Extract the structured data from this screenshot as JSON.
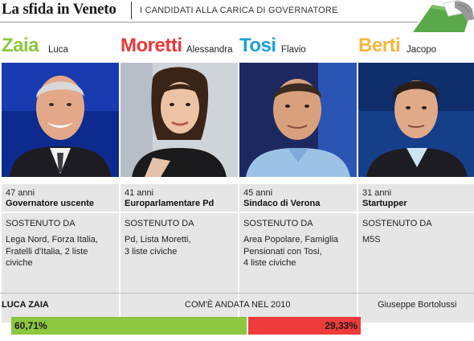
{
  "header": {
    "title": "La sfida in Veneto",
    "subtitle": "I CANDIDATI ALLA CARICA DI GOVERNATORE"
  },
  "candidates": [
    {
      "surname": "Zaia",
      "firstname": "Luca",
      "color": "#8dc63f",
      "age": "47 anni",
      "role": "Governatore uscente",
      "supported_label": "SOSTENUTO DA",
      "supporters": [
        "Lega Nord, Forza Italia,",
        "Fratelli d'Italia, 2 liste",
        "civiche"
      ]
    },
    {
      "surname": "Moretti",
      "firstname": "Alessandra",
      "color": "#e8393a",
      "age": "41 anni",
      "role": "Europarlamentare Pd",
      "supported_label": "SOSTENUTO DA",
      "supporters": [
        "Pd, Lista Moretti,",
        "3 liste civiche"
      ]
    },
    {
      "surname": "Tosi",
      "firstname": "Flavio",
      "color": "#1d9fd8",
      "age": "45 anni",
      "role": "Sindaco di Verona",
      "supported_label": "SOSTENUTO DA",
      "supporters": [
        "Area Popolare, Famiglia",
        "Pensionati con Tosi,",
        "4 liste civiche"
      ]
    },
    {
      "surname": "Berti",
      "firstname": "Jacopo",
      "color": "#f4b73e",
      "age": "31 anni",
      "role": "Startupper",
      "supported_label": "SOSTENUTO DA",
      "supporters": [
        "M5S"
      ]
    }
  ],
  "results": {
    "title": "COM'È ANDATA NEL 2010",
    "winner": "LUCA ZAIA",
    "winner_pct_label": "60,71%",
    "winner_pct": 60.71,
    "runner_up": "Giuseppe Bortolussi",
    "runner_pct_label": "29,33%",
    "runner_pct": 29.33,
    "winner_color": "#8dc63f",
    "runner_color": "#ee3b3b"
  }
}
